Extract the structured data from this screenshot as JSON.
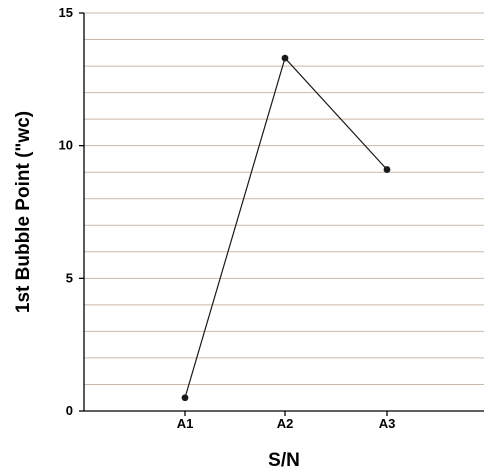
{
  "chart_data": {
    "type": "line",
    "categories": [
      "A1",
      "A2",
      "A3"
    ],
    "series": [
      {
        "values": [
          0.5,
          13.3,
          9.1
        ]
      }
    ],
    "xlabel": "S/N",
    "ylabel": "1st Bubble Point (\"wc)",
    "ylim": [
      0,
      15
    ],
    "yticks": [
      0,
      5,
      10,
      15
    ],
    "grid_step": 1,
    "grid": true,
    "colors": {
      "grid": "#c9b9a9",
      "line": "#1a1a1a",
      "axis": "#000000"
    }
  }
}
